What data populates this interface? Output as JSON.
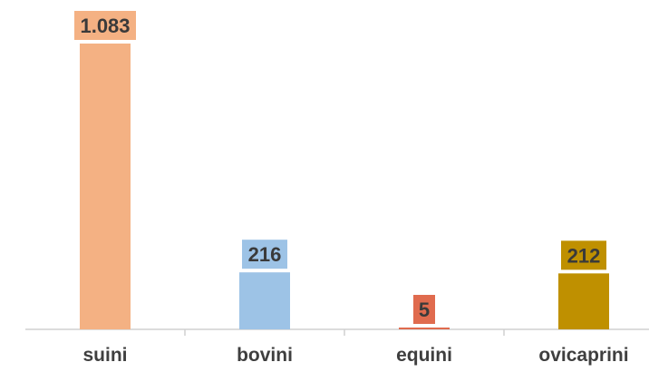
{
  "chart_data": {
    "type": "bar",
    "categories": [
      "suini",
      "bovini",
      "equini",
      "ovicaprini"
    ],
    "values": [
      1083,
      216,
      5,
      212
    ],
    "value_labels": [
      "1.083",
      "216",
      "5",
      "212"
    ],
    "colors": [
      "#f4b183",
      "#9dc3e6",
      "#e06b4e",
      "#bf9000"
    ],
    "title": "",
    "xlabel": "",
    "ylabel": "",
    "ylim": [
      0,
      1083
    ],
    "grid": false,
    "legend": "none"
  }
}
